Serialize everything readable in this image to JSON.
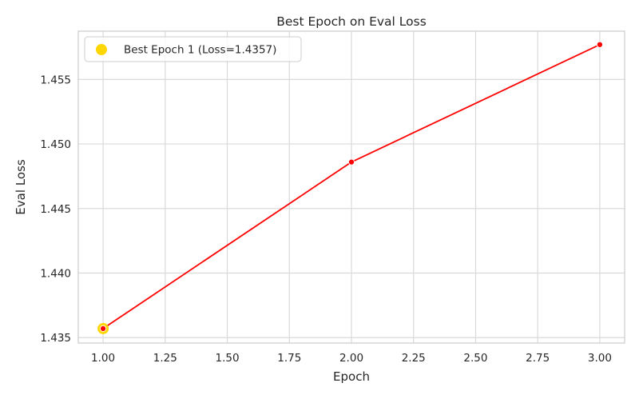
{
  "chart_data": {
    "type": "line",
    "title": "Best Epoch on Eval Loss",
    "xlabel": "Epoch",
    "ylabel": "Eval Loss",
    "xlim": [
      0.9,
      3.1
    ],
    "ylim": [
      1.43458,
      1.45874
    ],
    "x_ticks": [
      1.0,
      1.25,
      1.5,
      1.75,
      2.0,
      2.25,
      2.5,
      2.75,
      3.0
    ],
    "x_tick_labels": [
      "1.00",
      "1.25",
      "1.50",
      "1.75",
      "2.00",
      "2.25",
      "2.50",
      "2.75",
      "3.00"
    ],
    "y_ticks": [
      1.435,
      1.44,
      1.445,
      1.45,
      1.455
    ],
    "y_tick_labels": [
      "1.435",
      "1.440",
      "1.445",
      "1.450",
      "1.455"
    ],
    "grid": true,
    "legend_position": "top-left",
    "series": [
      {
        "x": [
          1,
          2,
          3
        ],
        "y": [
          1.4357,
          1.4486,
          1.4577
        ],
        "color": "#ff0000"
      }
    ],
    "highlight": {
      "name": "Best Epoch 1 (Loss=1.4357)",
      "x": 1,
      "y": 1.4357,
      "color": "#ffd700"
    }
  }
}
